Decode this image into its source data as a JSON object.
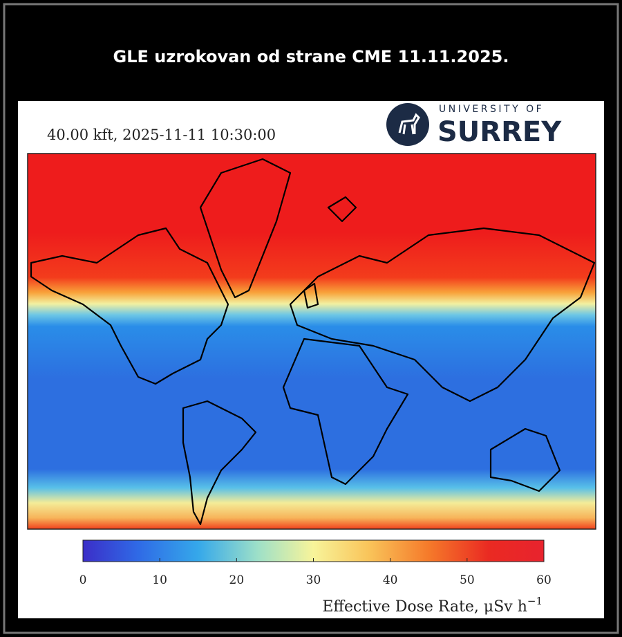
{
  "header": {
    "title": "GLE uzrokovan od strane CME 11.11.2025."
  },
  "map": {
    "caption": "40.00 kft, 2025-11-11 10:30:00",
    "logo": {
      "line1": "UNIVERSITY OF",
      "line2": "SURREY"
    }
  },
  "colorbar": {
    "lim": [
      0,
      60
    ],
    "ticks": [
      0,
      10,
      20,
      30,
      40,
      50,
      60
    ],
    "label": "Effective Dose Rate, μSv h",
    "label_exponent": "−1"
  }
}
